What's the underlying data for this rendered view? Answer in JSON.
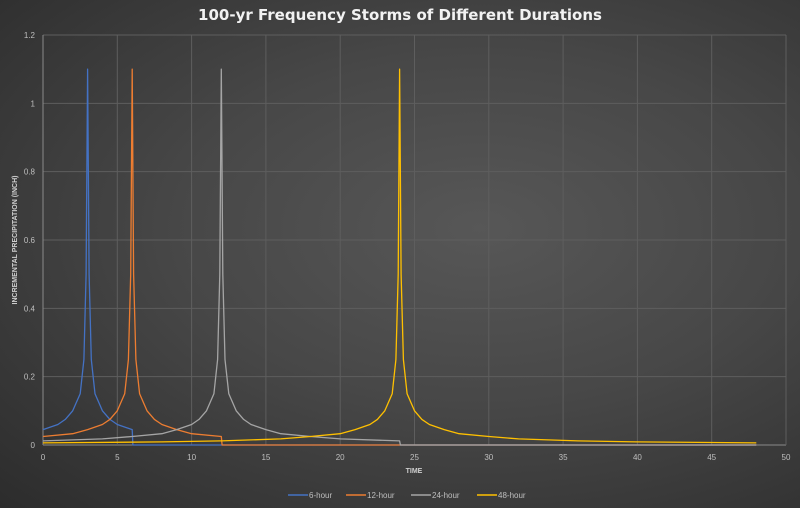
{
  "chart_data": {
    "type": "line",
    "title": "100-yr Frequency Storms of Different Durations",
    "xlabel": "TIME",
    "ylabel": "INCREMENTAL PRECIPITATION (INCH)",
    "xlim": [
      0,
      50
    ],
    "ylim": [
      0,
      1.2
    ],
    "xticks": [
      0,
      5,
      10,
      15,
      20,
      25,
      30,
      35,
      40,
      45,
      50
    ],
    "yticks": [
      0,
      0.2,
      0.4,
      0.6,
      0.8,
      1,
      1.2
    ],
    "grid": true,
    "legend_position": "bottom",
    "series": [
      {
        "name": "6-hour",
        "color": "#4472c4",
        "x": [
          0,
          1,
          1.5,
          2,
          2.5,
          2.75,
          2.9,
          3,
          3.1,
          3.25,
          3.5,
          4,
          4.5,
          5,
          6,
          6.05,
          48
        ],
        "y": [
          0.045,
          0.06,
          0.075,
          0.1,
          0.15,
          0.25,
          0.5,
          1.1,
          0.5,
          0.25,
          0.15,
          0.1,
          0.075,
          0.06,
          0.045,
          0,
          0
        ]
      },
      {
        "name": "12-hour",
        "color": "#ed7d31",
        "x": [
          0,
          2,
          3,
          4,
          4.5,
          5,
          5.5,
          5.75,
          5.9,
          6,
          6.1,
          6.25,
          6.5,
          7,
          7.5,
          8,
          9,
          10,
          12,
          12.05,
          48
        ],
        "y": [
          0.025,
          0.033,
          0.045,
          0.06,
          0.075,
          0.1,
          0.15,
          0.25,
          0.5,
          1.1,
          0.5,
          0.25,
          0.15,
          0.1,
          0.075,
          0.06,
          0.045,
          0.033,
          0.025,
          0,
          0
        ]
      },
      {
        "name": "24-hour",
        "color": "#a5a5a5",
        "x": [
          0,
          4,
          6,
          8,
          9,
          10,
          10.5,
          11,
          11.5,
          11.75,
          11.9,
          12,
          12.1,
          12.25,
          12.5,
          13,
          13.5,
          14,
          15,
          16,
          18,
          20,
          24,
          24.05,
          48
        ],
        "y": [
          0.012,
          0.018,
          0.025,
          0.033,
          0.045,
          0.06,
          0.075,
          0.1,
          0.15,
          0.25,
          0.5,
          1.1,
          0.5,
          0.25,
          0.15,
          0.1,
          0.075,
          0.06,
          0.045,
          0.033,
          0.025,
          0.018,
          0.012,
          0,
          0
        ]
      },
      {
        "name": "48-hour",
        "color": "#ffc000",
        "x": [
          0,
          8,
          12,
          16,
          18,
          20,
          21,
          22,
          22.5,
          23,
          23.5,
          23.75,
          23.9,
          24,
          24.1,
          24.25,
          24.5,
          25,
          25.5,
          26,
          27,
          28,
          30,
          32,
          36,
          40,
          48
        ],
        "y": [
          0.006,
          0.009,
          0.012,
          0.018,
          0.025,
          0.033,
          0.045,
          0.06,
          0.075,
          0.1,
          0.15,
          0.25,
          0.5,
          1.1,
          0.5,
          0.25,
          0.15,
          0.1,
          0.075,
          0.06,
          0.045,
          0.033,
          0.025,
          0.018,
          0.012,
          0.009,
          0.006
        ]
      }
    ]
  }
}
